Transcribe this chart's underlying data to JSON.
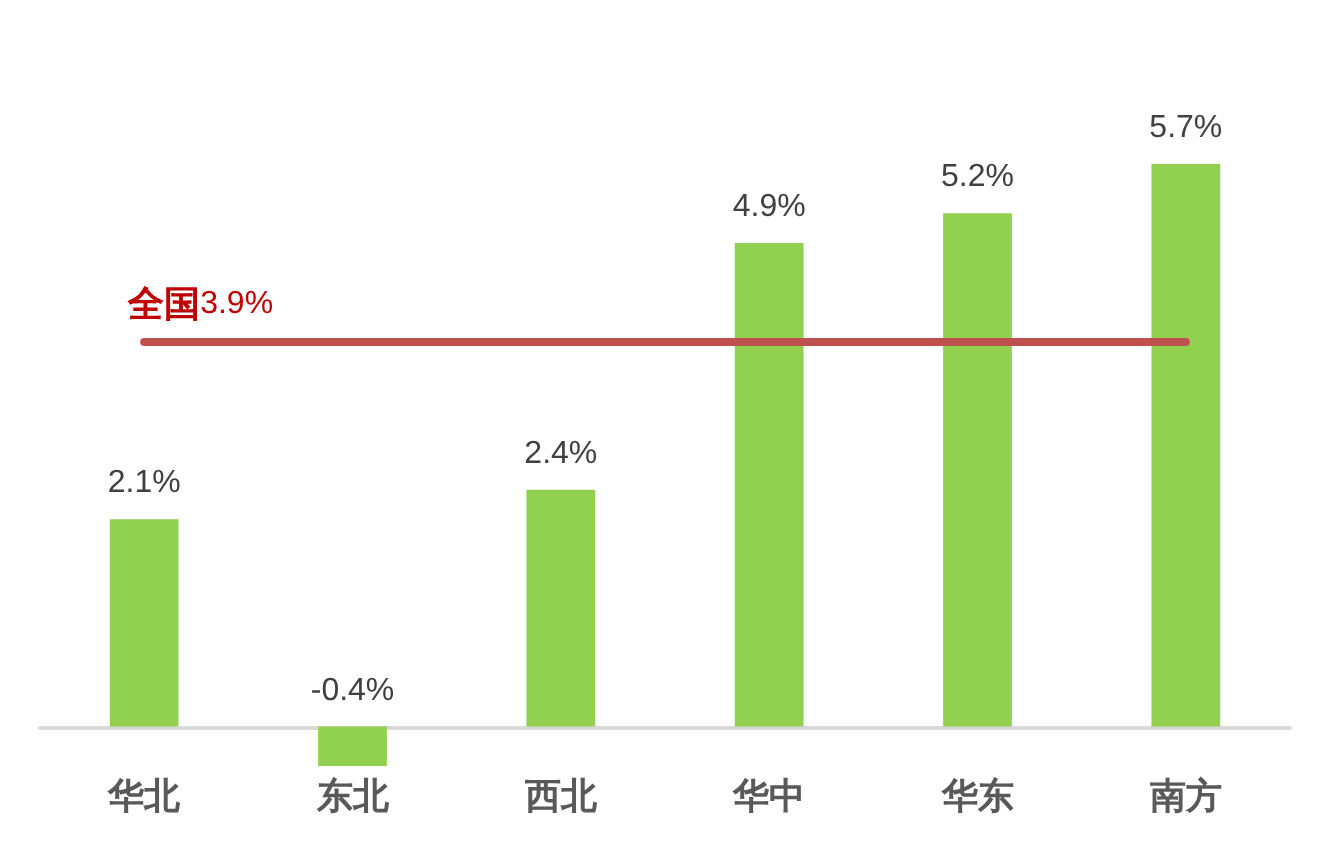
{
  "chart_data": {
    "type": "bar",
    "categories": [
      "华北",
      "东北",
      "西北",
      "华中",
      "华东",
      "南方"
    ],
    "values": [
      2.1,
      -0.4,
      2.4,
      4.9,
      5.2,
      5.7
    ],
    "value_labels": [
      "2.1%",
      "-0.4%",
      "2.4%",
      "4.9%",
      "5.2%",
      "5.7%"
    ],
    "color": "#92d050",
    "ref_lines": [
      {
        "axis": "y",
        "value": 3.9,
        "label": "全国3.9%",
        "color": "#c0504d"
      }
    ],
    "grid": false
  }
}
